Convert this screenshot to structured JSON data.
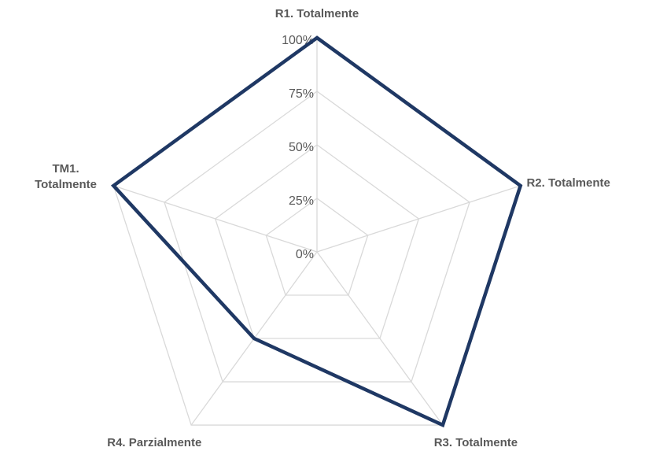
{
  "chart_data": {
    "type": "radar",
    "categories": [
      "R1.  Totalmente",
      "R2.  Totalmente",
      "R3.  Totalmente",
      "R4.  Parzialmente",
      "TM1.  Totalmente"
    ],
    "series": [
      {
        "color": "#1f3864",
        "values": [
          100,
          100,
          100,
          50,
          100
        ]
      }
    ],
    "ylim": [
      0,
      100
    ],
    "yticks": [
      {
        "value": 0,
        "label": "0%"
      },
      {
        "value": 25,
        "label": "25%"
      },
      {
        "value": 50,
        "label": "50%"
      },
      {
        "value": 75,
        "label": "75%"
      },
      {
        "value": 100,
        "label": "100%"
      }
    ],
    "grid": true
  }
}
